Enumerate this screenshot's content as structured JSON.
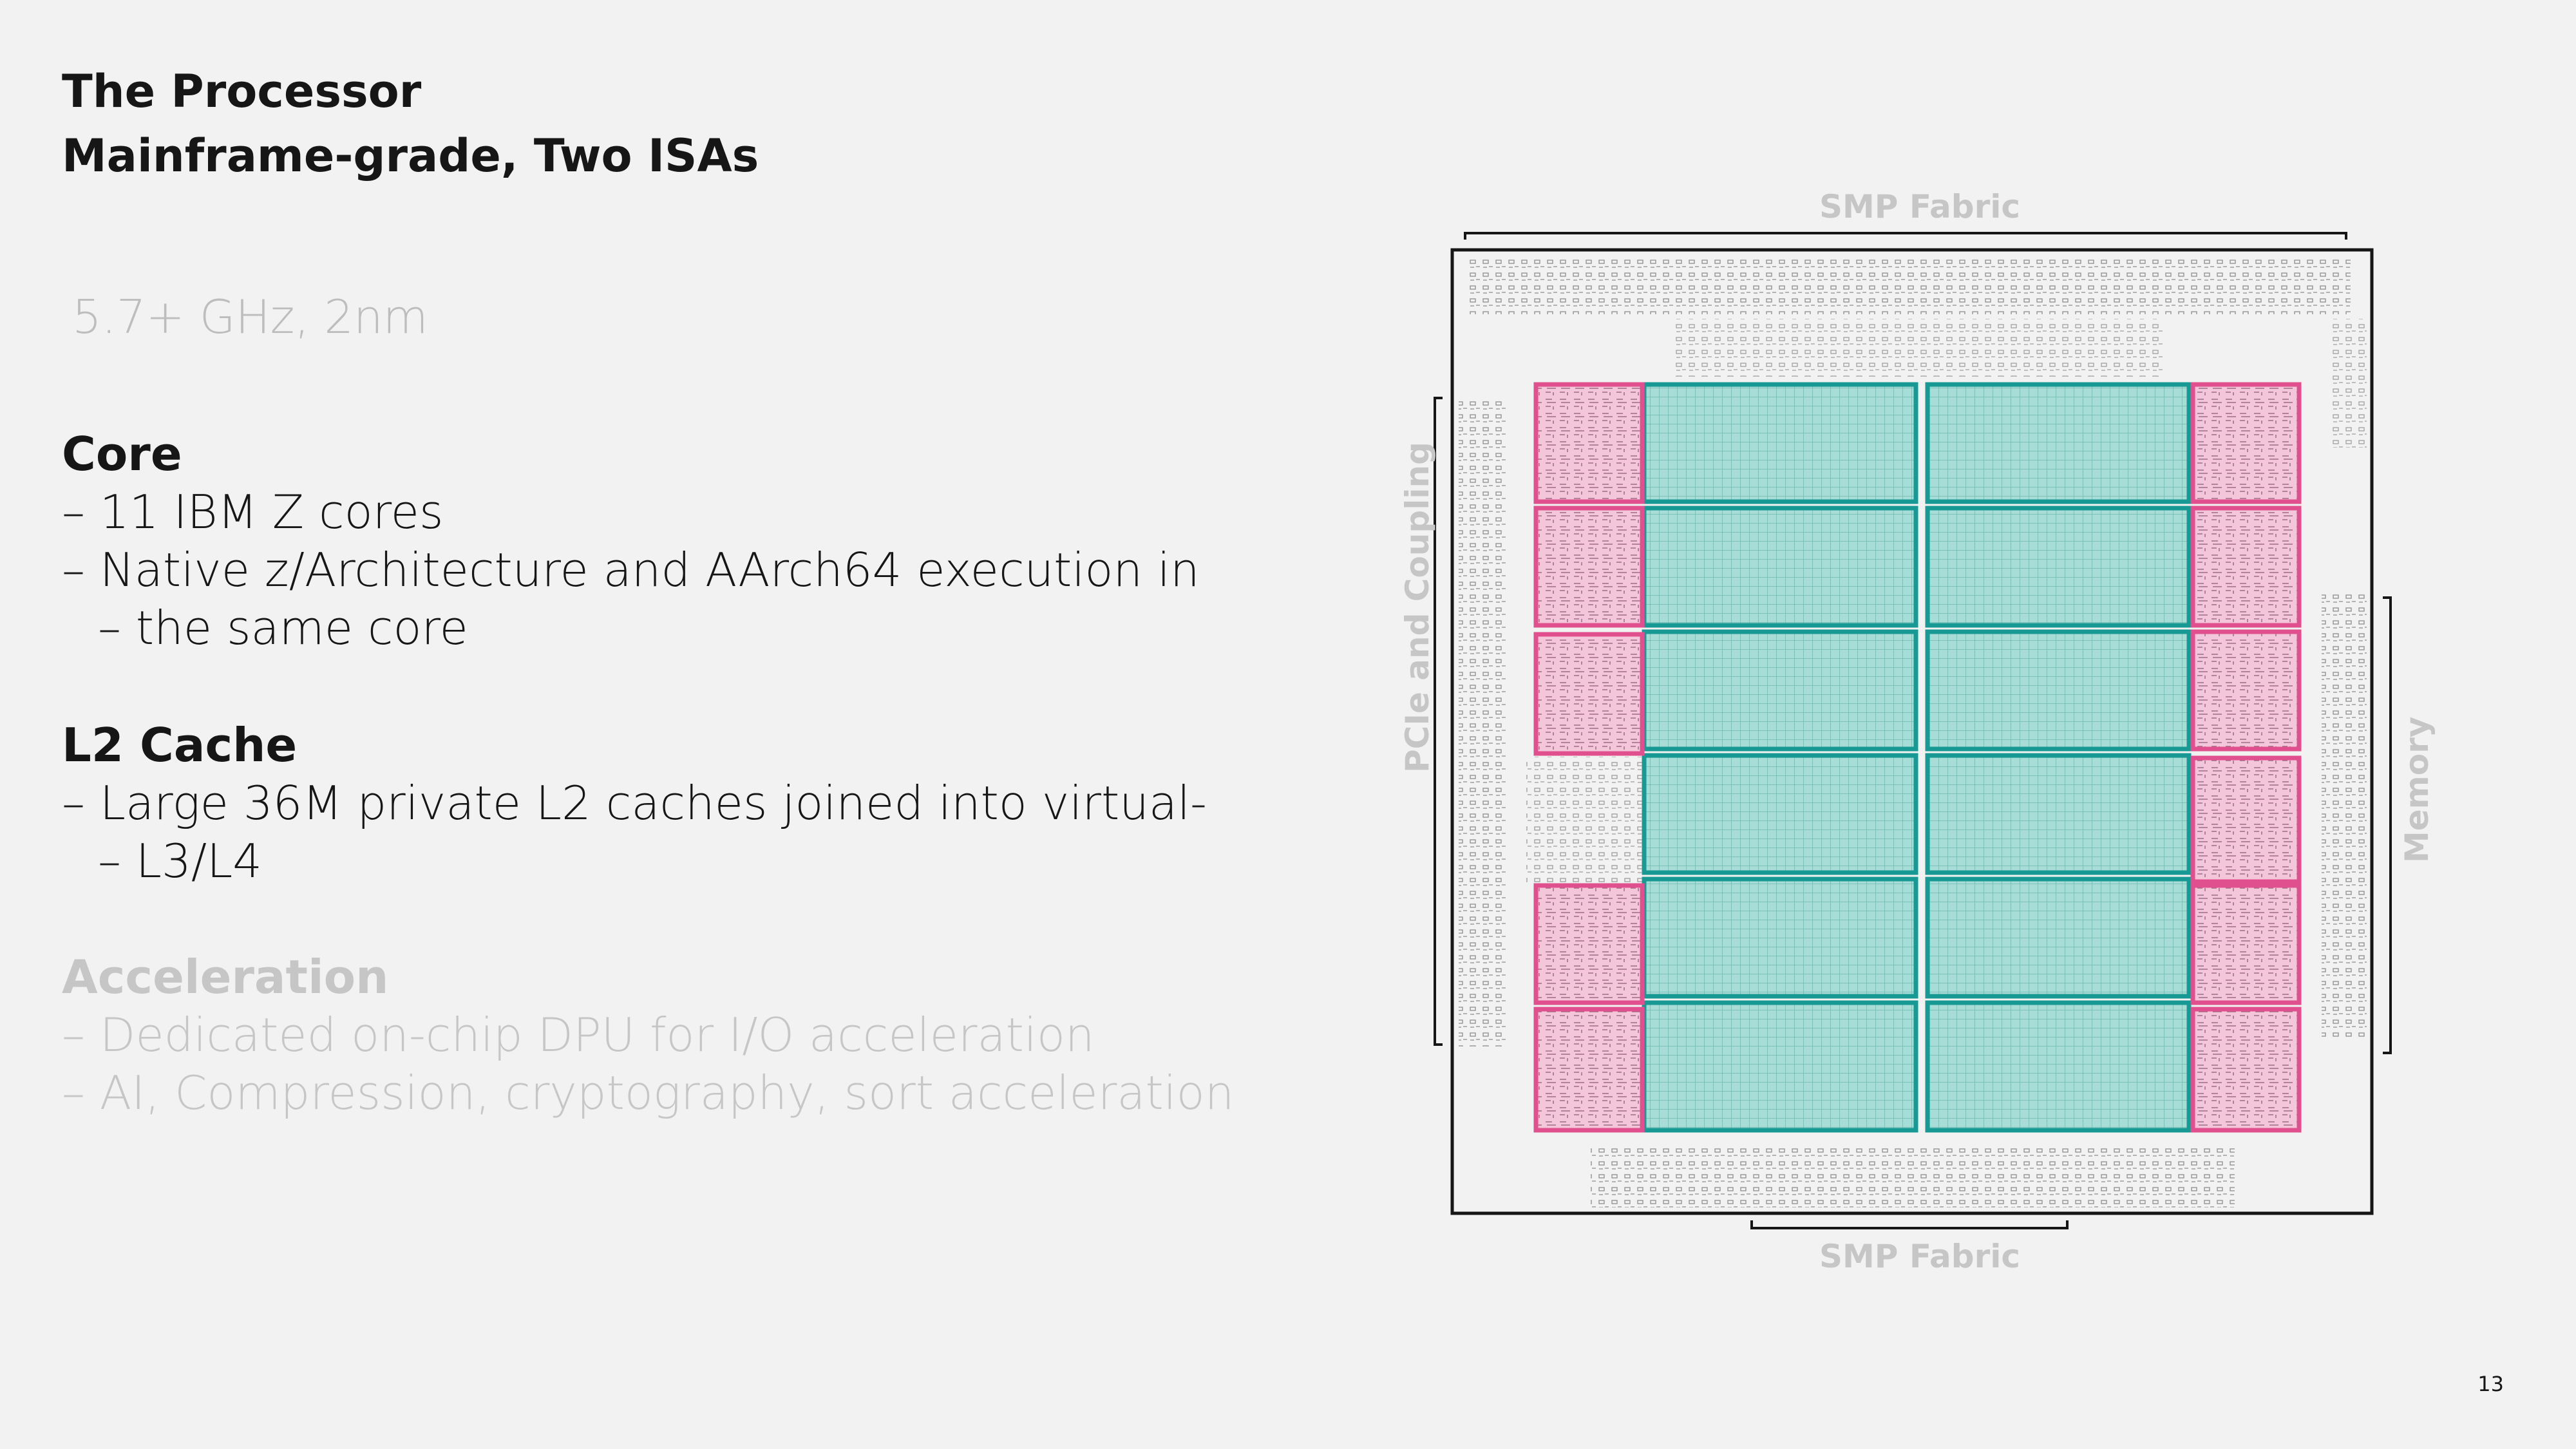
{
  "header": {
    "title_line1": "The Processor",
    "title_line2": "Mainframe-grade, Two ISAs"
  },
  "frequency": "5.7+ GHz, 2nm",
  "core": {
    "heading": "Core",
    "items": [
      "11 IBM Z cores",
      "Native z/Architecture and AArch64 execution in",
      "the same core"
    ]
  },
  "l2": {
    "heading": "L2 Cache",
    "items": [
      "Large 36M private L2 caches joined into virtual-",
      "L3/L4"
    ]
  },
  "acceleration": {
    "heading": "Acceleration",
    "items": [
      "Dedicated on-chip DPU for I/O acceleration",
      "AI, Compression, cryptography, sort acceleration"
    ]
  },
  "diagram": {
    "label_top": "SMP Fabric",
    "label_bottom": "SMP Fabric",
    "label_left": "PCIe and Coupling",
    "label_right": "Memory",
    "colors": {
      "core": "#f3c6d9",
      "core_border": "#e0508f",
      "cache": "#a8dcd7",
      "cache_border": "#179a93",
      "outline": "#161616"
    }
  },
  "page_number": "13"
}
